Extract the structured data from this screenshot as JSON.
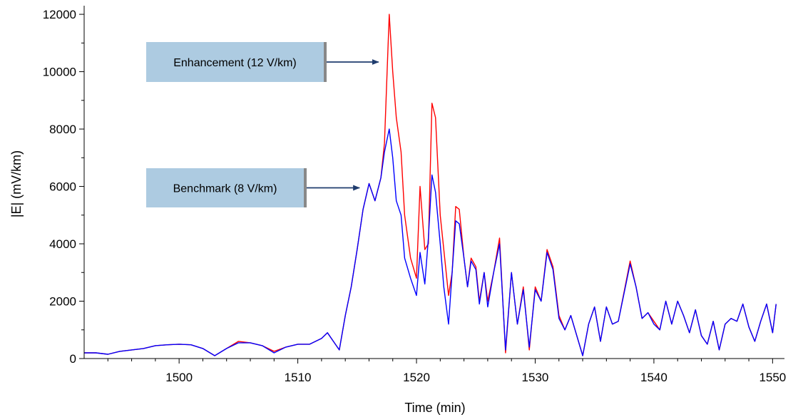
{
  "chart_data": {
    "type": "line",
    "title": "",
    "xlabel": "Time (min)",
    "ylabel": "|E| (mV/km)",
    "xlim": [
      1492,
      1551
    ],
    "ylim": [
      0,
      12300
    ],
    "x_ticks": [
      1500,
      1510,
      1520,
      1530,
      1540,
      1550
    ],
    "y_ticks": [
      0,
      2000,
      4000,
      6000,
      8000,
      10000,
      12000
    ],
    "grid": false,
    "series": [
      {
        "name": "",
        "color": "#ff0000",
        "points": [
          [
            1492,
            200
          ],
          [
            1493,
            200
          ],
          [
            1494,
            150
          ],
          [
            1495,
            250
          ],
          [
            1496,
            300
          ],
          [
            1497,
            350
          ],
          [
            1498,
            450
          ],
          [
            1499,
            480
          ],
          [
            1500,
            500
          ],
          [
            1501,
            480
          ],
          [
            1502,
            350
          ],
          [
            1503,
            100
          ],
          [
            1504,
            350
          ],
          [
            1505,
            600
          ],
          [
            1506,
            550
          ],
          [
            1507,
            450
          ],
          [
            1508,
            250
          ],
          [
            1509,
            400
          ],
          [
            1510,
            500
          ],
          [
            1511,
            500
          ],
          [
            1512,
            700
          ],
          [
            1512.5,
            900
          ],
          [
            1513,
            600
          ],
          [
            1513.5,
            300
          ],
          [
            1514,
            1500
          ],
          [
            1514.5,
            2500
          ],
          [
            1515,
            3800
          ],
          [
            1515.5,
            5200
          ],
          [
            1516,
            6100
          ],
          [
            1516.5,
            5500
          ],
          [
            1517,
            6300
          ],
          [
            1517.3,
            7500
          ],
          [
            1517.7,
            12000
          ],
          [
            1518,
            10000
          ],
          [
            1518.3,
            8400
          ],
          [
            1518.7,
            7200
          ],
          [
            1519,
            5000
          ],
          [
            1519.5,
            3500
          ],
          [
            1520,
            2800
          ],
          [
            1520.3,
            6000
          ],
          [
            1520.7,
            3800
          ],
          [
            1521,
            4000
          ],
          [
            1521.3,
            8900
          ],
          [
            1521.6,
            8400
          ],
          [
            1522,
            5000
          ],
          [
            1522.3,
            3800
          ],
          [
            1522.7,
            2200
          ],
          [
            1523,
            3000
          ],
          [
            1523.3,
            5300
          ],
          [
            1523.6,
            5200
          ],
          [
            1524,
            3500
          ],
          [
            1524.3,
            2500
          ],
          [
            1524.6,
            3500
          ],
          [
            1525,
            3200
          ],
          [
            1525.3,
            2000
          ],
          [
            1525.7,
            3000
          ],
          [
            1526,
            2000
          ],
          [
            1526.5,
            3000
          ],
          [
            1527,
            4200
          ],
          [
            1527.5,
            200
          ],
          [
            1528,
            3000
          ],
          [
            1528.5,
            1200
          ],
          [
            1529,
            2500
          ],
          [
            1529.5,
            300
          ],
          [
            1530,
            2500
          ],
          [
            1530.5,
            2000
          ],
          [
            1531,
            3800
          ],
          [
            1531.5,
            3200
          ],
          [
            1532,
            1500
          ],
          [
            1532.5,
            1000
          ],
          [
            1533,
            1500
          ],
          [
            1534,
            100
          ],
          [
            1534.5,
            1200
          ],
          [
            1535,
            1800
          ],
          [
            1535.5,
            600
          ],
          [
            1536,
            1800
          ],
          [
            1536.5,
            1200
          ],
          [
            1537,
            1300
          ],
          [
            1538,
            3400
          ],
          [
            1538.5,
            2500
          ],
          [
            1539,
            1400
          ],
          [
            1539.5,
            1600
          ],
          [
            1540,
            1300
          ],
          [
            1540.5,
            1000
          ],
          [
            1541,
            2000
          ],
          [
            1541.5,
            1200
          ],
          [
            1542,
            2000
          ],
          [
            1542.5,
            1500
          ],
          [
            1543,
            900
          ],
          [
            1543.5,
            1700
          ],
          [
            1544,
            800
          ],
          [
            1544.5,
            500
          ],
          [
            1545,
            1300
          ],
          [
            1545.5,
            300
          ],
          [
            1546,
            1200
          ],
          [
            1546.5,
            1400
          ],
          [
            1547,
            1300
          ],
          [
            1547.5,
            1900
          ],
          [
            1548,
            1100
          ],
          [
            1548.5,
            600
          ],
          [
            1549,
            1300
          ],
          [
            1549.5,
            1900
          ],
          [
            1550,
            900
          ],
          [
            1550.3,
            1900
          ]
        ]
      },
      {
        "name": "",
        "color": "#0000ff",
        "points": [
          [
            1492,
            200
          ],
          [
            1493,
            200
          ],
          [
            1494,
            150
          ],
          [
            1495,
            250
          ],
          [
            1496,
            300
          ],
          [
            1497,
            350
          ],
          [
            1498,
            450
          ],
          [
            1499,
            480
          ],
          [
            1500,
            500
          ],
          [
            1501,
            480
          ],
          [
            1502,
            350
          ],
          [
            1503,
            100
          ],
          [
            1504,
            350
          ],
          [
            1505,
            550
          ],
          [
            1506,
            550
          ],
          [
            1507,
            450
          ],
          [
            1508,
            200
          ],
          [
            1509,
            400
          ],
          [
            1510,
            500
          ],
          [
            1511,
            500
          ],
          [
            1512,
            700
          ],
          [
            1512.5,
            900
          ],
          [
            1513,
            600
          ],
          [
            1513.5,
            300
          ],
          [
            1514,
            1500
          ],
          [
            1514.5,
            2500
          ],
          [
            1515,
            3800
          ],
          [
            1515.5,
            5200
          ],
          [
            1516,
            6100
          ],
          [
            1516.5,
            5500
          ],
          [
            1517,
            6300
          ],
          [
            1517.3,
            7200
          ],
          [
            1517.7,
            8000
          ],
          [
            1518,
            7000
          ],
          [
            1518.3,
            5500
          ],
          [
            1518.7,
            5000
          ],
          [
            1519,
            3500
          ],
          [
            1519.5,
            2800
          ],
          [
            1520,
            2200
          ],
          [
            1520.3,
            3700
          ],
          [
            1520.7,
            2600
          ],
          [
            1521,
            4200
          ],
          [
            1521.3,
            6400
          ],
          [
            1521.6,
            5800
          ],
          [
            1522,
            4000
          ],
          [
            1522.3,
            2500
          ],
          [
            1522.7,
            1200
          ],
          [
            1523,
            3000
          ],
          [
            1523.3,
            4800
          ],
          [
            1523.6,
            4700
          ],
          [
            1524,
            3500
          ],
          [
            1524.3,
            2500
          ],
          [
            1524.6,
            3400
          ],
          [
            1525,
            3100
          ],
          [
            1525.3,
            1900
          ],
          [
            1525.7,
            3000
          ],
          [
            1526,
            1800
          ],
          [
            1526.5,
            3000
          ],
          [
            1527,
            4000
          ],
          [
            1527.5,
            300
          ],
          [
            1528,
            3000
          ],
          [
            1528.5,
            1200
          ],
          [
            1529,
            2400
          ],
          [
            1529.5,
            400
          ],
          [
            1530,
            2400
          ],
          [
            1530.5,
            2000
          ],
          [
            1531,
            3700
          ],
          [
            1531.5,
            3100
          ],
          [
            1532,
            1400
          ],
          [
            1532.5,
            1000
          ],
          [
            1533,
            1500
          ],
          [
            1534,
            100
          ],
          [
            1534.5,
            1200
          ],
          [
            1535,
            1800
          ],
          [
            1535.5,
            600
          ],
          [
            1536,
            1800
          ],
          [
            1536.5,
            1200
          ],
          [
            1537,
            1300
          ],
          [
            1538,
            3300
          ],
          [
            1538.5,
            2500
          ],
          [
            1539,
            1400
          ],
          [
            1539.5,
            1600
          ],
          [
            1540,
            1200
          ],
          [
            1540.5,
            1000
          ],
          [
            1541,
            2000
          ],
          [
            1541.5,
            1200
          ],
          [
            1542,
            2000
          ],
          [
            1542.5,
            1500
          ],
          [
            1543,
            900
          ],
          [
            1543.5,
            1700
          ],
          [
            1544,
            800
          ],
          [
            1544.5,
            500
          ],
          [
            1545,
            1300
          ],
          [
            1545.5,
            300
          ],
          [
            1546,
            1200
          ],
          [
            1546.5,
            1400
          ],
          [
            1547,
            1300
          ],
          [
            1547.5,
            1900
          ],
          [
            1548,
            1100
          ],
          [
            1548.5,
            600
          ],
          [
            1549,
            1300
          ],
          [
            1549.5,
            1900
          ],
          [
            1550,
            900
          ],
          [
            1550.3,
            1900
          ]
        ]
      }
    ],
    "annotations": [
      {
        "text": "Enhancement (12 V/km)",
        "target_x": 1517.4,
        "target_y": 10800
      },
      {
        "text": "Benchmark (8 V/km)",
        "target_x": 1515.8,
        "target_y": 6100
      }
    ]
  },
  "style": {
    "callout_fill": "#adcbe1",
    "callout_edge": "#888888",
    "arrow_color": "#1f3c6e",
    "axis_color": "#000000"
  }
}
